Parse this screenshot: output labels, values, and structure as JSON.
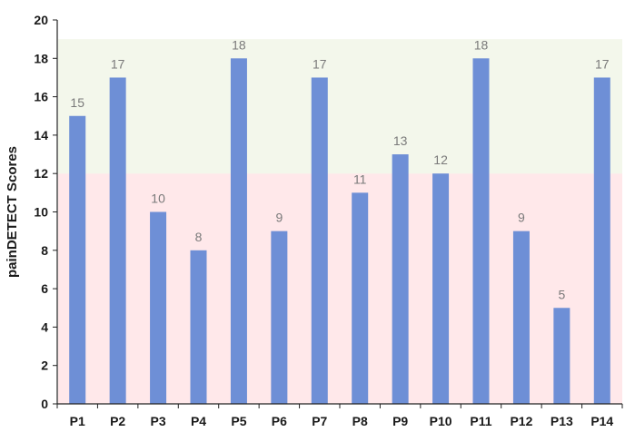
{
  "chart_data": {
    "type": "bar",
    "title": "",
    "xlabel": "",
    "ylabel": "painDETECT Scores",
    "ylim": [
      0,
      20
    ],
    "yticks": [
      0,
      2,
      4,
      6,
      8,
      10,
      12,
      14,
      16,
      18,
      20
    ],
    "grid": false,
    "legend": "none",
    "categories": [
      "P1",
      "P2",
      "P3",
      "P4",
      "P5",
      "P6",
      "P7",
      "P8",
      "P9",
      "P10",
      "P11",
      "P12",
      "P13",
      "P14"
    ],
    "values": [
      15,
      17,
      10,
      8,
      18,
      9,
      17,
      11,
      13,
      12,
      18,
      9,
      5,
      17
    ],
    "data_labels": [
      "15",
      "17",
      "10",
      "8",
      "18",
      "9",
      "17",
      "11",
      "13",
      "12",
      "18",
      "9",
      "5",
      "17"
    ],
    "bands": [
      {
        "from": 0,
        "to": 12,
        "color": "#ffd9dc",
        "opacity": 0.6
      },
      {
        "from": 12,
        "to": 19,
        "color": "#eef3e3",
        "opacity": 0.7
      }
    ],
    "colors": {
      "bar": "#6e8fd6",
      "axis": "#222222"
    }
  }
}
